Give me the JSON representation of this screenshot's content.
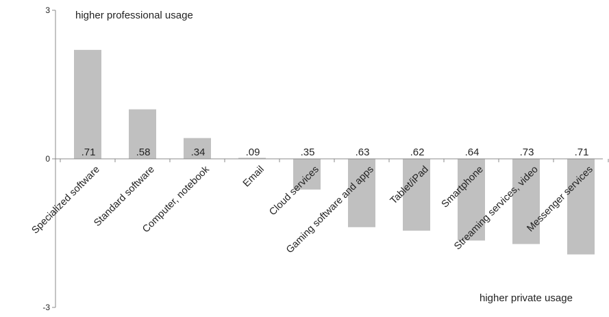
{
  "chart_data": {
    "type": "bar",
    "categories": [
      "Specialized software",
      "Standard software",
      "Computer, notebook",
      "Email",
      "Cloud services",
      "Gaming software and apps",
      "Tablet/iPad",
      "Smartphone",
      "Streaming services, video",
      "Messenger services"
    ],
    "values": [
      2.2,
      1.0,
      0.42,
      0.02,
      -0.62,
      -1.38,
      -1.45,
      -1.65,
      -1.72,
      -1.93
    ],
    "data_labels": [
      ".71",
      ".58",
      ".34",
      ".09",
      ".35",
      ".63",
      ".62",
      ".64",
      ".73",
      ".71"
    ],
    "ylim": [
      -3,
      3
    ],
    "yticks": [
      "-3",
      "0",
      "3"
    ],
    "annotations": {
      "top": "higher professional usage",
      "bottom": "higher private usage"
    },
    "grid": false,
    "bar_color": "#c0c0c0"
  }
}
